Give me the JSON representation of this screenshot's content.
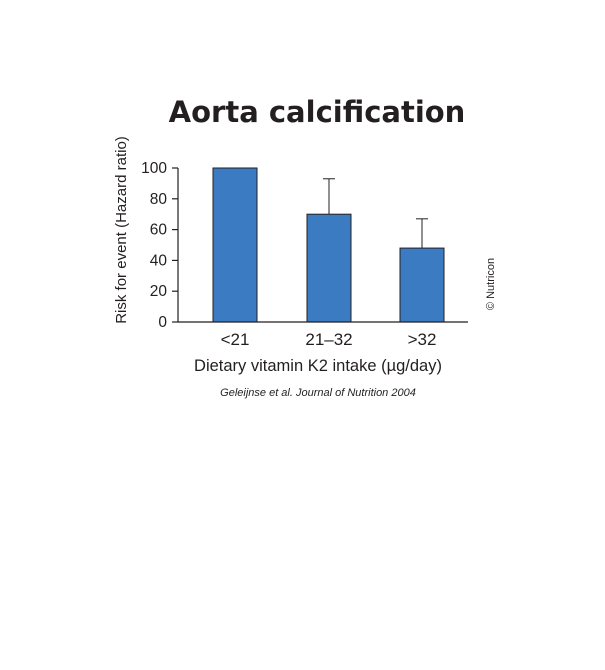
{
  "chart_data": {
    "type": "bar",
    "title": "Aorta calcification",
    "ylabel": "Risk for event (Hazard ratio)",
    "xlabel": "Dietary vitamin K2 intake (µg/day)",
    "categories": [
      "<21",
      "21–32",
      ">32"
    ],
    "values": [
      100,
      70,
      48
    ],
    "error_upper": [
      100,
      93,
      67
    ],
    "ylim": [
      0,
      100
    ],
    "yticks": [
      "0",
      "20",
      "40",
      "60",
      "80",
      "100"
    ],
    "grid": false,
    "bar_color": "#3a7bc1"
  },
  "citation": "Geleijnse et al. Journal of Nutrition 2004",
  "copyright": "© Nutricon"
}
